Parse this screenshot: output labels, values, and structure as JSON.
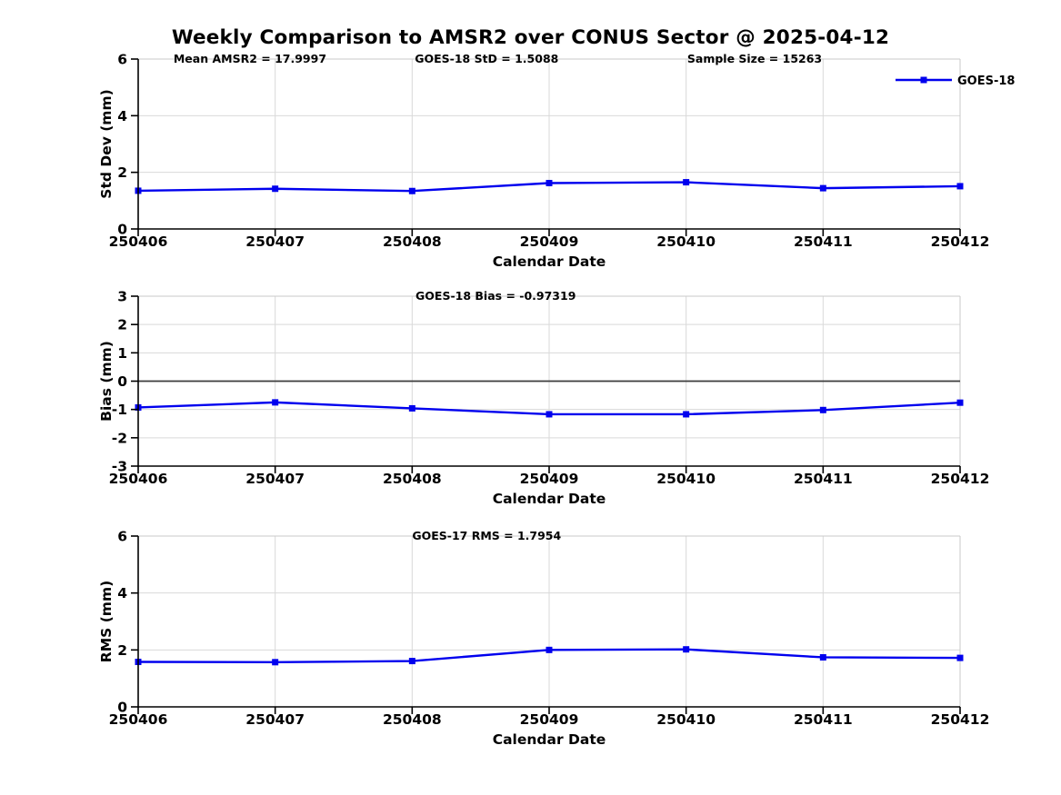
{
  "title": "Weekly Comparison to AMSR2 over CONUS Sector @ 2025-04-12",
  "colors": {
    "series": "#0000ee",
    "grid": "#d9d9d9",
    "box_light": "#c9c9c9",
    "spine": "#000000",
    "zero_line": "#3c3c3c",
    "background": "#ffffff"
  },
  "chart_data": [
    {
      "type": "line",
      "xlabel": "Calendar Date",
      "ylabel": "Std Dev (mm)",
      "categories": [
        "250406",
        "250407",
        "250408",
        "250409",
        "250410",
        "250411",
        "250412"
      ],
      "series": [
        {
          "name": "GOES-18",
          "values": [
            1.35,
            1.42,
            1.34,
            1.62,
            1.65,
            1.44,
            1.51
          ]
        }
      ],
      "ylim": [
        0,
        6
      ],
      "yticks": [
        0,
        2,
        4,
        6
      ],
      "grid": true,
      "annotations": [
        "Mean AMSR2 = 17.9997",
        "GOES-18 StD = 1.5088",
        "Sample Size = 15263"
      ],
      "legend": {
        "label": "GOES-18",
        "position": "top-right-outside"
      }
    },
    {
      "type": "line",
      "xlabel": "Calendar Date",
      "ylabel": "Bias (mm)",
      "categories": [
        "250406",
        "250407",
        "250408",
        "250409",
        "250410",
        "250411",
        "250412"
      ],
      "series": [
        {
          "name": "GOES-18",
          "values": [
            -0.93,
            -0.75,
            -0.96,
            -1.17,
            -1.17,
            -1.02,
            -0.76
          ]
        }
      ],
      "ylim": [
        -3,
        3
      ],
      "yticks": [
        -3,
        -2,
        -1,
        0,
        1,
        2,
        3
      ],
      "grid": true,
      "zero_line": true,
      "annotations": [
        "GOES-18 Bias  = -0.97319"
      ]
    },
    {
      "type": "line",
      "xlabel": "Calendar Date",
      "ylabel": "RMS (mm)",
      "categories": [
        "250406",
        "250407",
        "250408",
        "250409",
        "250410",
        "250411",
        "250412"
      ],
      "series": [
        {
          "name": "GOES-18",
          "values": [
            1.58,
            1.57,
            1.61,
            2.0,
            2.02,
            1.74,
            1.72
          ]
        }
      ],
      "ylim": [
        0,
        6
      ],
      "yticks": [
        0,
        2,
        4,
        6
      ],
      "grid": true,
      "annotations": [
        "GOES-17 RMS = 1.7954"
      ]
    }
  ]
}
